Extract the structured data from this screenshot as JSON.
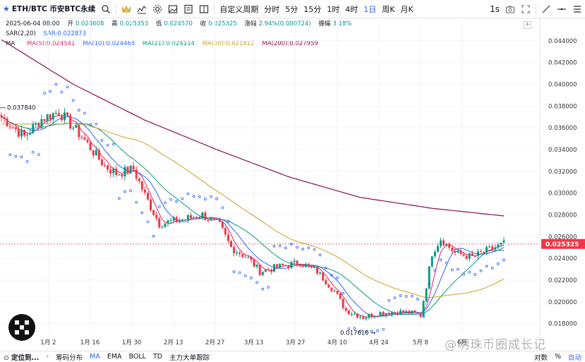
{
  "toolbar": {
    "symbol": "ETH/BTC 币安BTC永续",
    "period_custom": "自定义周期",
    "periods": [
      "分时",
      "5分",
      "15分",
      "1时",
      "4时",
      "1日",
      "周K",
      "月K"
    ],
    "active_period": "1日",
    "replay": "1s"
  },
  "info": {
    "date": "2025-06-04 08:00",
    "open_label": "开",
    "open": "0.024608",
    "high_label": "高",
    "high": "0.025353",
    "low_label": "低",
    "low": "0.024570",
    "close_label": "收",
    "close": "0.025325",
    "change_label": "涨幅",
    "change": "2.94%(0.000724)",
    "amp_label": "振幅",
    "amp": "3.18%",
    "sar_label": "SAR(2,20)",
    "sar": "SAR:0.022873",
    "ma_label": "MA",
    "ma5": "MA(5):0.024541",
    "ma10": "MA(10):0.024468",
    "ma21": "MA(21):0.024114",
    "ma50": "MA(50):0.021812",
    "ma200": "MA(200):0.027959"
  },
  "colors": {
    "up": "#089981",
    "down": "#f23645",
    "sar": "#2962ff",
    "ma5": "#e91e63",
    "ma10": "#2962ff",
    "ma21": "#089981",
    "ma50": "#c9a227",
    "ma200": "#880e4f"
  },
  "chart_data": {
    "type": "candlestick",
    "ylim": [
      0.0172,
      0.0458
    ],
    "y_ticks": [
      "0.044000",
      "0.042000",
      "0.040000",
      "0.038000",
      "0.036000",
      "0.034000",
      "0.032000",
      "0.030000",
      "0.028000",
      "0.026000",
      "0.024000",
      "0.022000",
      "0.020000",
      "0.018000"
    ],
    "x_ticks": [
      "1月 2",
      "1月 16",
      "1月 30",
      "2月 13",
      "2月 27",
      "3月 13",
      "3月 27",
      "4月 10",
      "4月 24",
      "5月 8",
      "6月"
    ],
    "current_price": "0.025325",
    "annotations": {
      "high": "0.037840",
      "low": "0.017610"
    },
    "ma200": [
      0.0441,
      0.04,
      0.0367,
      0.034,
      0.0315,
      0.0296,
      0.0286,
      0.0279
    ]
  },
  "bottom": {
    "position_label": "定位到...",
    "tabs": [
      "筹码分布",
      "MA",
      "EMA",
      "BOLL",
      "TD",
      "主力大单跟踪"
    ],
    "active_tab": "MA",
    "scale": [
      "对数",
      "%",
      "自动"
    ]
  },
  "watermark": "@明珠币圈成长记"
}
